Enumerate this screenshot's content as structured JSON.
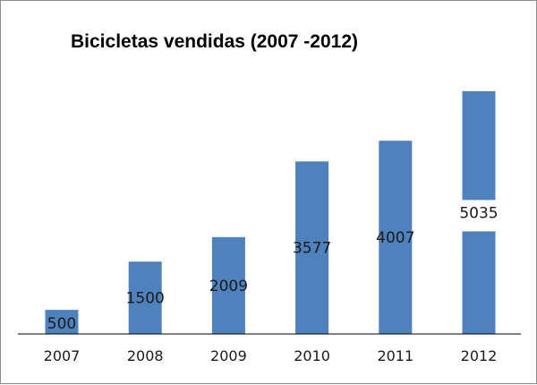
{
  "chart_data": {
    "type": "bar",
    "title": "Bicicletas vendidas (2007 -2012)",
    "categories": [
      "2007",
      "2008",
      "2009",
      "2010",
      "2011",
      "2012"
    ],
    "values": [
      500,
      1500,
      2009,
      3577,
      4007,
      5035
    ],
    "data_labels": [
      "500",
      "1500",
      "2009",
      "3577",
      "4007",
      "5035"
    ],
    "xlabel": "",
    "ylabel": "",
    "ylim": [
      0,
      5050
    ],
    "grid": false,
    "legend": "none",
    "colors": {
      "bar": "#4f81bd",
      "axis": "#000000",
      "border": "#8c8c8c",
      "label_box": "#ffffff"
    }
  }
}
